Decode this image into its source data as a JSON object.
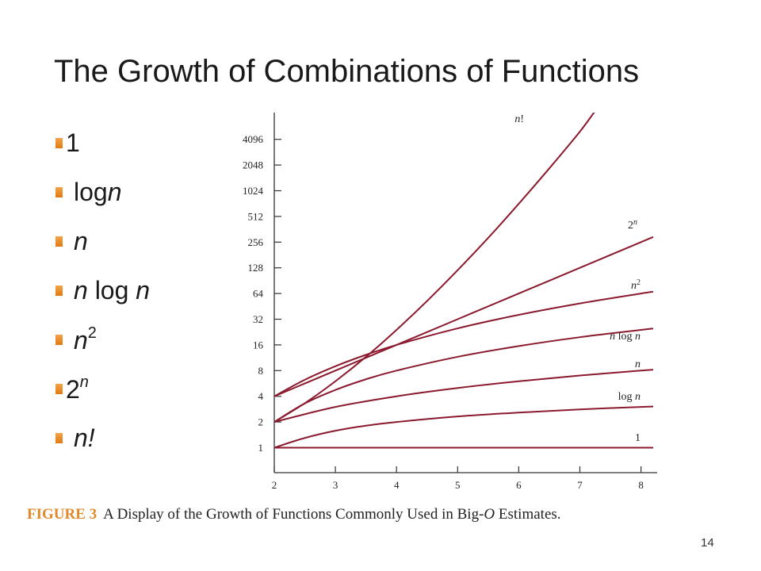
{
  "slide": {
    "title": "The Growth of Combinations of  Functions",
    "page_number": "14"
  },
  "bullets": [
    {
      "parts": [
        {
          "t": "1"
        }
      ],
      "tight": true
    },
    {
      "parts": [
        {
          "t": "log"
        },
        {
          "t": "n",
          "i": true
        }
      ]
    },
    {
      "parts": [
        {
          "t": "n",
          "i": true
        }
      ]
    },
    {
      "parts": [
        {
          "t": "n",
          "i": true
        },
        {
          "t": " log "
        },
        {
          "t": "n",
          "i": true
        }
      ]
    },
    {
      "parts": [
        {
          "t": "n",
          "i": true
        },
        {
          "t": "2",
          "sup": true
        }
      ]
    },
    {
      "parts": [
        {
          "t": "2"
        },
        {
          "t": "n",
          "i": true,
          "sup": true
        }
      ],
      "tight": true
    },
    {
      "parts": [
        {
          "t": "n",
          "i": true
        },
        {
          "t": "!",
          "i": true
        }
      ]
    }
  ],
  "caption": {
    "figure_label": "FIGURE 3",
    "text_before": "A Display of the Growth of Functions Commonly Used in Big-",
    "text_italic": "O",
    "text_after": " Estimates."
  },
  "chart_data": {
    "type": "line",
    "x_scale": "linear",
    "y_scale": "log2",
    "xlim": [
      2,
      8.3
    ],
    "ylim": [
      0.5,
      16384
    ],
    "x_ticks": [
      2,
      3,
      4,
      5,
      6,
      7,
      8
    ],
    "y_ticks": [
      1,
      2,
      4,
      8,
      16,
      32,
      64,
      128,
      256,
      512,
      1024,
      2048,
      4096
    ],
    "line_color": "#8b1a2e",
    "series": [
      {
        "name": "1",
        "label_parts": [
          {
            "t": "1"
          }
        ],
        "points": [
          [
            2,
            1
          ],
          [
            3,
            1
          ],
          [
            4,
            1
          ],
          [
            5,
            1
          ],
          [
            6,
            1
          ],
          [
            7,
            1
          ],
          [
            8,
            1
          ],
          [
            8.2,
            1
          ]
        ]
      },
      {
        "name": "log n",
        "label_parts": [
          {
            "t": "log "
          },
          {
            "t": "n",
            "i": true
          }
        ],
        "points": [
          [
            2,
            1
          ],
          [
            2.5,
            1.3
          ],
          [
            3,
            1.58
          ],
          [
            3.5,
            1.81
          ],
          [
            4,
            2
          ],
          [
            5,
            2.32
          ],
          [
            6,
            2.58
          ],
          [
            7,
            2.81
          ],
          [
            8,
            3
          ],
          [
            8.2,
            3.04
          ]
        ]
      },
      {
        "name": "n",
        "label_parts": [
          {
            "t": "n",
            "i": true
          }
        ],
        "points": [
          [
            2,
            2
          ],
          [
            3,
            3
          ],
          [
            4,
            4
          ],
          [
            5,
            5
          ],
          [
            6,
            6
          ],
          [
            7,
            7
          ],
          [
            8,
            8
          ],
          [
            8.2,
            8.2
          ]
        ]
      },
      {
        "name": "n log n",
        "label_parts": [
          {
            "t": "n",
            "i": true
          },
          {
            "t": " log "
          },
          {
            "t": "n",
            "i": true
          }
        ],
        "points": [
          [
            2,
            2
          ],
          [
            2.5,
            3.3
          ],
          [
            3,
            4.75
          ],
          [
            3.5,
            6.33
          ],
          [
            4,
            8
          ],
          [
            5,
            11.6
          ],
          [
            6,
            15.5
          ],
          [
            7,
            19.7
          ],
          [
            8,
            24
          ],
          [
            8.2,
            24.9
          ]
        ]
      },
      {
        "name": "n^2",
        "label_parts": [
          {
            "t": "n",
            "i": true
          },
          {
            "t": "2",
            "sup": true
          }
        ],
        "points": [
          [
            2,
            4
          ],
          [
            2.5,
            6.25
          ],
          [
            3,
            9
          ],
          [
            3.5,
            12.25
          ],
          [
            4,
            16
          ],
          [
            5,
            25
          ],
          [
            6,
            36
          ],
          [
            7,
            49
          ],
          [
            8,
            64
          ],
          [
            8.2,
            67.2
          ]
        ]
      },
      {
        "name": "2^n",
        "label_parts": [
          {
            "t": "2"
          },
          {
            "t": "n",
            "i": true,
            "sup": true
          }
        ],
        "points": [
          [
            2,
            4
          ],
          [
            3,
            8
          ],
          [
            4,
            16
          ],
          [
            5,
            32
          ],
          [
            6,
            64
          ],
          [
            7,
            128
          ],
          [
            8,
            256
          ],
          [
            8.2,
            294
          ]
        ]
      },
      {
        "name": "n!",
        "label_parts": [
          {
            "t": "n",
            "i": true
          },
          {
            "t": "!"
          }
        ],
        "points": [
          [
            2,
            2
          ],
          [
            2.5,
            3.32
          ],
          [
            3,
            6
          ],
          [
            3.5,
            11.6
          ],
          [
            4,
            24
          ],
          [
            4.5,
            52.3
          ],
          [
            5,
            120
          ],
          [
            5.5,
            287
          ],
          [
            6,
            720
          ],
          [
            6.5,
            1871
          ],
          [
            7,
            5040
          ],
          [
            7.3,
            9800
          ],
          [
            7.5,
            14000
          ]
        ]
      }
    ]
  }
}
